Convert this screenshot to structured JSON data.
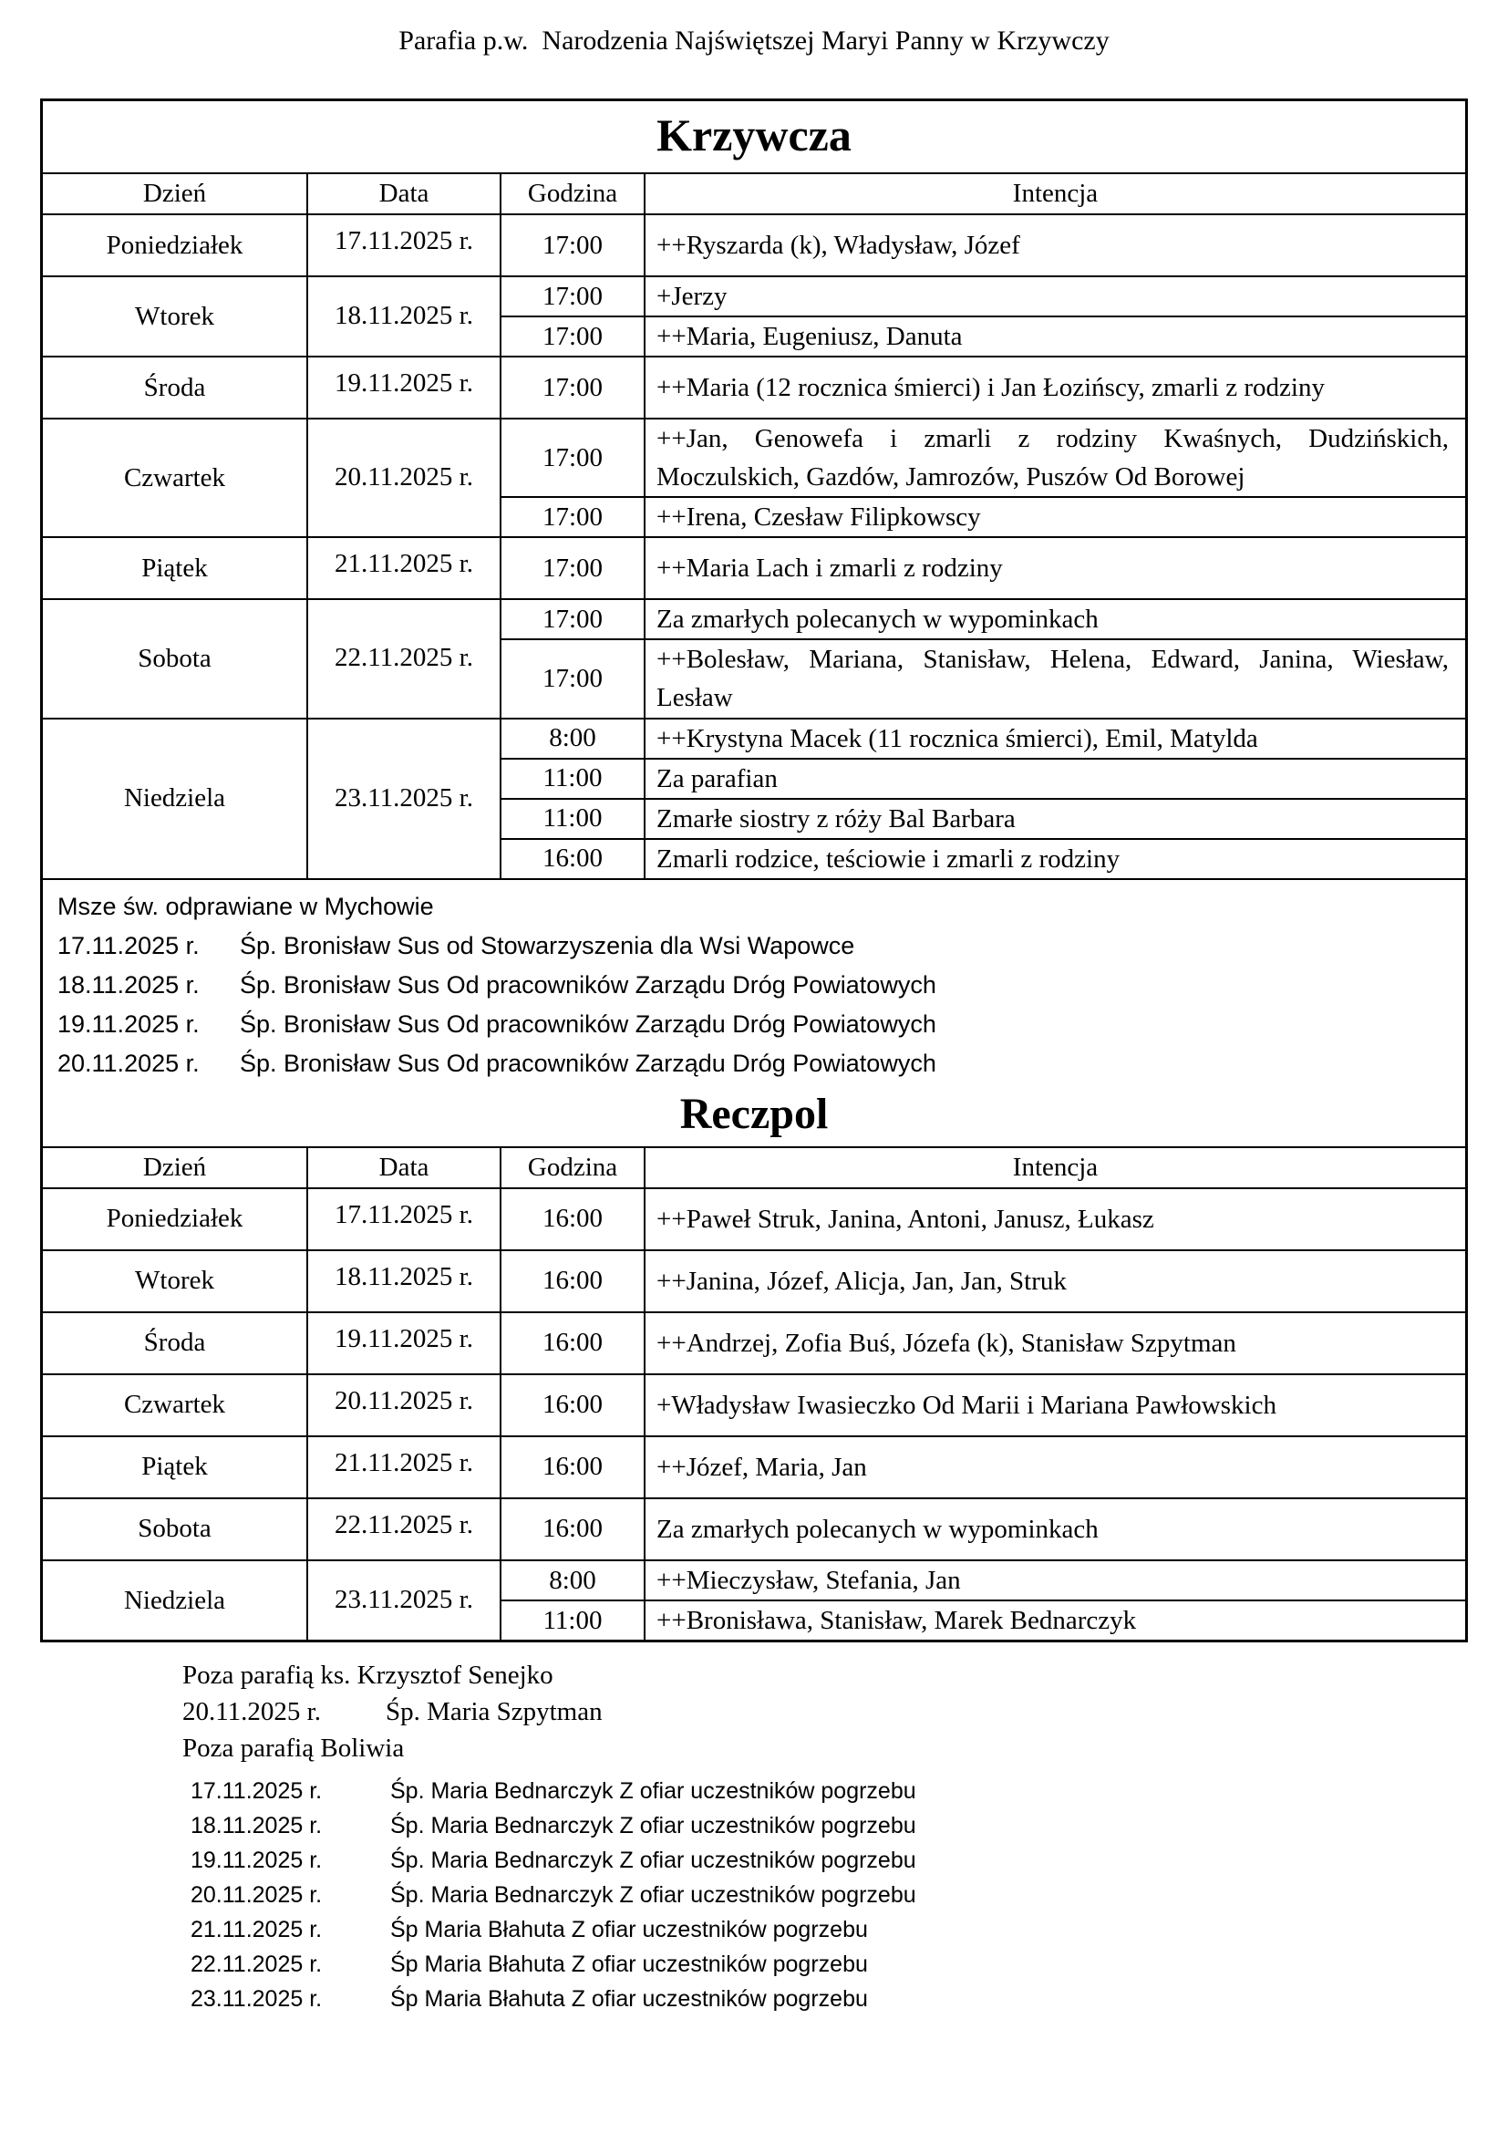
{
  "page_header": "Parafia p.w.  Narodzenia Najświętszej Maryi Panny w Krzywczy",
  "column_headers": [
    "Dzień",
    "Data",
    "Godzina",
    "Intencja"
  ],
  "tables": [
    {
      "title": "Krzywcza",
      "groups": [
        {
          "day": "Poniedziałek",
          "date": "17.11.2025 r.",
          "masses": [
            {
              "time": "17:00",
              "intention": "++Ryszarda (k), Władysław, Józef"
            }
          ]
        },
        {
          "day": "Wtorek",
          "date": "18.11.2025 r.",
          "masses": [
            {
              "time": "17:00",
              "intention": "+Jerzy"
            },
            {
              "time": "17:00",
              "intention": "++Maria, Eugeniusz, Danuta"
            }
          ]
        },
        {
          "day": "Środa",
          "date": "19.11.2025 r.",
          "masses": [
            {
              "time": "17:00",
              "intention": "++Maria (12 rocznica śmierci) i Jan Łozińscy, zmarli z rodziny"
            }
          ]
        },
        {
          "day": "Czwartek",
          "date": "20.11.2025 r.",
          "masses": [
            {
              "time": "17:00",
              "intention": "++Jan, Genowefa i zmarli z rodziny Kwaśnych, Dudzińskich, Moczulskich, Gazdów, Jamrozów, Puszów Od Borowej"
            },
            {
              "time": "17:00",
              "intention": "++Irena, Czesław Filipkowscy"
            }
          ]
        },
        {
          "day": "Piątek",
          "date": "21.11.2025 r.",
          "masses": [
            {
              "time": "17:00",
              "intention": "++Maria Lach i zmarli z rodziny"
            }
          ]
        },
        {
          "day": "Sobota",
          "date": "22.11.2025 r.",
          "masses": [
            {
              "time": "17:00",
              "intention": "Za zmarłych polecanych w wypominkach"
            },
            {
              "time": "17:00",
              "intention": "++Bolesław, Mariana, Stanisław, Helena, Edward, Janina, Wiesław, Lesław"
            }
          ]
        },
        {
          "day": "Niedziela",
          "date": "23.11.2025 r.",
          "masses": [
            {
              "time": "8:00",
              "intention": "++Krystyna Macek (11 rocznica śmierci), Emil, Matylda"
            },
            {
              "time": "11:00",
              "intention": "Za parafian"
            },
            {
              "time": "11:00",
              "intention": "Zmarłe siostry z róży Bal Barbara"
            },
            {
              "time": "16:00",
              "intention": "Zmarli rodzice, teściowie i zmarli z rodziny"
            }
          ]
        }
      ]
    },
    {
      "title": "Reczpol",
      "groups": [
        {
          "day": "Poniedziałek",
          "date": "17.11.2025 r.",
          "masses": [
            {
              "time": "16:00",
              "intention": "++Paweł Struk, Janina, Antoni, Janusz, Łukasz"
            }
          ]
        },
        {
          "day": "Wtorek",
          "date": "18.11.2025 r.",
          "masses": [
            {
              "time": "16:00",
              "intention": "++Janina, Józef, Alicja, Jan, Jan, Struk"
            }
          ]
        },
        {
          "day": "Środa",
          "date": "19.11.2025 r.",
          "masses": [
            {
              "time": "16:00",
              "intention": "++Andrzej, Zofia Buś, Józefa (k), Stanisław Szpytman"
            }
          ]
        },
        {
          "day": "Czwartek",
          "date": "20.11.2025 r.",
          "masses": [
            {
              "time": "16:00",
              "intention": "+Władysław Iwasieczko Od Marii i Mariana Pawłowskich"
            }
          ]
        },
        {
          "day": "Piątek",
          "date": "21.11.2025 r.",
          "masses": [
            {
              "time": "16:00",
              "intention": "++Józef, Maria, Jan"
            }
          ]
        },
        {
          "day": "Sobota",
          "date": "22.11.2025 r.",
          "masses": [
            {
              "time": "16:00",
              "intention": "Za zmarłych polecanych w wypominkach"
            }
          ]
        },
        {
          "day": "Niedziela",
          "date": "23.11.2025 r.",
          "masses": [
            {
              "time": "8:00",
              "intention": "++Mieczysław, Stefania, Jan"
            },
            {
              "time": "11:00",
              "intention": "++Bronisława, Stanisław, Marek Bednarczyk"
            }
          ]
        }
      ]
    }
  ],
  "mychow_note": {
    "heading": "Msze św. odprawiane w Mychowie",
    "entries": [
      {
        "date": "17.11.2025 r.",
        "text": "Śp. Bronisław Sus od Stowarzyszenia dla Wsi Wapowce"
      },
      {
        "date": "18.11.2025 r.",
        "text": "Śp. Bronisław Sus Od pracowników Zarządu Dróg Powiatowych"
      },
      {
        "date": "19.11.2025 r.",
        "text": "Śp. Bronisław Sus Od pracowników Zarządu Dróg Powiatowych"
      },
      {
        "date": "20.11.2025 r.",
        "text": "Śp. Bronisław Sus Od pracowników Zarządu Dróg Powiatowych"
      }
    ]
  },
  "footer": {
    "away_note_1": "Poza parafią ks. Krzysztof Senejko",
    "away_entry": {
      "date": "20.11.2025 r.",
      "text": "Śp. Maria Szpytman"
    },
    "away_note_2": "Poza parafią Boliwia",
    "entries": [
      {
        "date": "17.11.2025 r.",
        "text": "Śp. Maria Bednarczyk Z ofiar uczestników pogrzebu"
      },
      {
        "date": "18.11.2025 r.",
        "text": "Śp. Maria Bednarczyk Z ofiar uczestników pogrzebu"
      },
      {
        "date": "19.11.2025 r.",
        "text": "Śp. Maria Bednarczyk Z ofiar uczestników pogrzebu"
      },
      {
        "date": "20.11.2025 r.",
        "text": "Śp. Maria Bednarczyk Z ofiar uczestników pogrzebu"
      },
      {
        "date": "21.11.2025 r.",
        "text": "Śp Maria Błahuta Z ofiar uczestników pogrzebu"
      },
      {
        "date": "22.11.2025 r.",
        "text": "Śp Maria Błahuta Z ofiar uczestników pogrzebu"
      },
      {
        "date": "23.11.2025 r.",
        "text": "Śp Maria Błahuta Z ofiar uczestników pogrzebu"
      }
    ]
  }
}
